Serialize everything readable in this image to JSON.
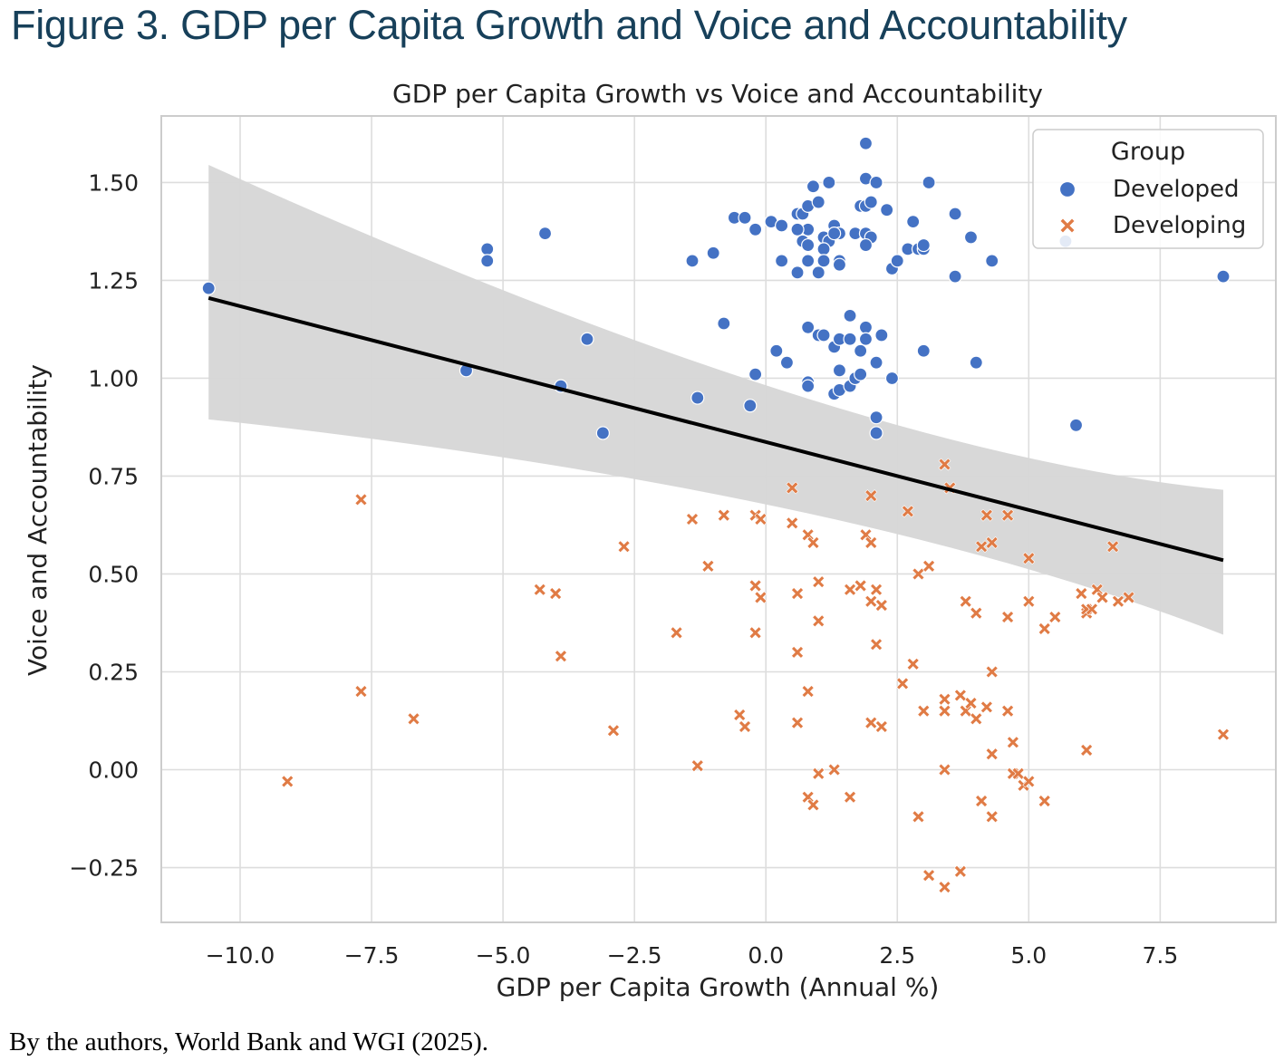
{
  "figure_title": "Figure 3. GDP per Capita Growth and Voice and Accountability",
  "caption": "By the authors, World Bank and WGI (2025).",
  "colors": {
    "developed": "#4472c4",
    "developing": "#e07b45",
    "regression_line": "#000000",
    "confidence_band": "#d6d6d6",
    "grid": "#dddddd",
    "title": "#17405a"
  },
  "chart_data": {
    "type": "scatter",
    "title": "GDP per Capita Growth vs Voice and Accountability",
    "xlabel": "GDP per Capita Growth (Annual %)",
    "ylabel": "Voice and Accountability",
    "xlim": [
      -11.5,
      9.7
    ],
    "ylim": [
      -0.39,
      1.67
    ],
    "xticks": [
      -10.0,
      -7.5,
      -5.0,
      -2.5,
      0.0,
      2.5,
      5.0,
      7.5
    ],
    "xtick_labels": [
      "−10.0",
      "−7.5",
      "−5.0",
      "−2.5",
      "0.0",
      "2.5",
      "5.0",
      "7.5"
    ],
    "yticks": [
      -0.25,
      0.0,
      0.25,
      0.5,
      0.75,
      1.0,
      1.25,
      1.5
    ],
    "ytick_labels": [
      "−0.25",
      "0.00",
      "0.25",
      "0.50",
      "0.75",
      "1.00",
      "1.25",
      "1.50"
    ],
    "grid": true,
    "legend": {
      "title": "Group",
      "placement": "top-right"
    },
    "series": [
      {
        "name": "Developed",
        "marker": "circle",
        "points": [
          [
            -10.6,
            1.23
          ],
          [
            -5.3,
            1.33
          ],
          [
            -5.3,
            1.3
          ],
          [
            -4.2,
            1.37
          ],
          [
            -5.7,
            1.02
          ],
          [
            -3.9,
            0.98
          ],
          [
            -3.4,
            1.1
          ],
          [
            -3.1,
            0.86
          ],
          [
            -1.4,
            1.3
          ],
          [
            -1.3,
            0.95
          ],
          [
            -1.0,
            1.32
          ],
          [
            -0.8,
            1.14
          ],
          [
            -0.6,
            1.41
          ],
          [
            -0.4,
            1.41
          ],
          [
            -0.2,
            1.38
          ],
          [
            -0.2,
            1.01
          ],
          [
            -0.3,
            0.93
          ],
          [
            0.1,
            1.4
          ],
          [
            0.3,
            1.39
          ],
          [
            0.3,
            1.3
          ],
          [
            0.2,
            1.07
          ],
          [
            0.4,
            1.04
          ],
          [
            0.6,
            1.42
          ],
          [
            0.7,
            1.42
          ],
          [
            0.8,
            1.44
          ],
          [
            0.8,
            1.38
          ],
          [
            0.6,
            1.38
          ],
          [
            0.7,
            1.35
          ],
          [
            0.8,
            1.34
          ],
          [
            0.6,
            1.27
          ],
          [
            0.8,
            1.3
          ],
          [
            0.9,
            1.49
          ],
          [
            1.0,
            1.45
          ],
          [
            1.2,
            1.5
          ],
          [
            1.1,
            1.36
          ],
          [
            1.2,
            1.35
          ],
          [
            1.1,
            1.33
          ],
          [
            1.1,
            1.3
          ],
          [
            1.0,
            1.27
          ],
          [
            0.8,
            1.13
          ],
          [
            1.0,
            1.11
          ],
          [
            1.1,
            1.11
          ],
          [
            0.8,
            0.99
          ],
          [
            0.8,
            0.98
          ],
          [
            1.3,
            1.39
          ],
          [
            1.4,
            1.37
          ],
          [
            1.3,
            1.37
          ],
          [
            1.4,
            1.3
          ],
          [
            1.4,
            1.29
          ],
          [
            1.3,
            1.08
          ],
          [
            1.4,
            1.1
          ],
          [
            1.4,
            1.02
          ],
          [
            1.3,
            0.96
          ],
          [
            1.4,
            0.97
          ],
          [
            1.6,
            1.16
          ],
          [
            1.6,
            1.1
          ],
          [
            1.7,
            1.37
          ],
          [
            1.6,
            0.98
          ],
          [
            1.7,
            1.0
          ],
          [
            1.8,
            1.44
          ],
          [
            1.9,
            1.6
          ],
          [
            1.9,
            1.51
          ],
          [
            1.9,
            1.44
          ],
          [
            2.0,
            1.45
          ],
          [
            2.1,
            1.5
          ],
          [
            1.9,
            1.37
          ],
          [
            2.0,
            1.36
          ],
          [
            1.9,
            1.34
          ],
          [
            1.9,
            1.13
          ],
          [
            1.9,
            1.1
          ],
          [
            1.8,
            1.07
          ],
          [
            1.8,
            1.01
          ],
          [
            2.2,
            1.11
          ],
          [
            2.1,
            1.04
          ],
          [
            2.1,
            0.9
          ],
          [
            2.1,
            0.86
          ],
          [
            2.3,
            1.43
          ],
          [
            2.4,
            1.28
          ],
          [
            2.5,
            1.3
          ],
          [
            2.4,
            1.0
          ],
          [
            2.7,
            1.33
          ],
          [
            2.8,
            1.4
          ],
          [
            2.9,
            1.33
          ],
          [
            3.0,
            1.33
          ],
          [
            3.0,
            1.34
          ],
          [
            3.1,
            1.5
          ],
          [
            3.0,
            1.07
          ],
          [
            3.6,
            1.42
          ],
          [
            3.6,
            1.26
          ],
          [
            3.9,
            1.36
          ],
          [
            4.0,
            1.04
          ],
          [
            4.3,
            1.3
          ],
          [
            5.7,
            1.35
          ],
          [
            5.9,
            0.88
          ],
          [
            8.7,
            1.26
          ]
        ]
      },
      {
        "name": "Developing",
        "marker": "x",
        "points": [
          [
            -9.1,
            -0.03
          ],
          [
            -7.7,
            0.69
          ],
          [
            -7.7,
            0.2
          ],
          [
            -6.7,
            0.13
          ],
          [
            -4.3,
            0.46
          ],
          [
            -4.0,
            0.45
          ],
          [
            -3.9,
            0.29
          ],
          [
            -2.9,
            0.1
          ],
          [
            -2.7,
            0.57
          ],
          [
            -1.7,
            0.35
          ],
          [
            -1.4,
            0.64
          ],
          [
            -1.3,
            0.01
          ],
          [
            -1.1,
            0.52
          ],
          [
            -0.8,
            0.65
          ],
          [
            -0.5,
            0.14
          ],
          [
            -0.4,
            0.11
          ],
          [
            -0.2,
            0.65
          ],
          [
            -0.1,
            0.64
          ],
          [
            -0.2,
            0.47
          ],
          [
            -0.1,
            0.44
          ],
          [
            -0.2,
            0.35
          ],
          [
            0.5,
            0.72
          ],
          [
            0.5,
            0.63
          ],
          [
            0.6,
            0.45
          ],
          [
            0.6,
            0.3
          ],
          [
            0.6,
            0.12
          ],
          [
            0.8,
            0.2
          ],
          [
            0.8,
            0.6
          ],
          [
            0.9,
            0.58
          ],
          [
            1.0,
            0.48
          ],
          [
            1.0,
            0.38
          ],
          [
            0.8,
            -0.07
          ],
          [
            0.9,
            -0.09
          ],
          [
            1.0,
            -0.01
          ],
          [
            1.3,
            0.0
          ],
          [
            1.6,
            -0.07
          ],
          [
            1.6,
            0.46
          ],
          [
            1.8,
            0.47
          ],
          [
            1.9,
            0.6
          ],
          [
            2.0,
            0.58
          ],
          [
            2.0,
            0.7
          ],
          [
            2.0,
            0.43
          ],
          [
            2.1,
            0.46
          ],
          [
            2.2,
            0.42
          ],
          [
            2.1,
            0.32
          ],
          [
            2.0,
            0.12
          ],
          [
            2.2,
            0.11
          ],
          [
            2.7,
            0.66
          ],
          [
            2.6,
            0.22
          ],
          [
            2.8,
            0.27
          ],
          [
            2.9,
            0.5
          ],
          [
            3.1,
            0.52
          ],
          [
            3.0,
            0.15
          ],
          [
            2.9,
            -0.12
          ],
          [
            3.1,
            -0.27
          ],
          [
            3.4,
            0.78
          ],
          [
            3.5,
            0.72
          ],
          [
            3.4,
            0.15
          ],
          [
            3.4,
            0.18
          ],
          [
            3.4,
            0.0
          ],
          [
            3.4,
            -0.3
          ],
          [
            3.7,
            0.19
          ],
          [
            3.8,
            0.43
          ],
          [
            3.8,
            0.15
          ],
          [
            3.9,
            0.17
          ],
          [
            4.0,
            0.4
          ],
          [
            4.0,
            0.13
          ],
          [
            4.1,
            0.57
          ],
          [
            4.2,
            0.16
          ],
          [
            4.2,
            0.65
          ],
          [
            4.3,
            0.58
          ],
          [
            4.3,
            0.25
          ],
          [
            4.3,
            0.04
          ],
          [
            4.1,
            -0.08
          ],
          [
            4.3,
            -0.12
          ],
          [
            3.7,
            -0.26
          ],
          [
            4.6,
            0.65
          ],
          [
            4.6,
            0.39
          ],
          [
            4.6,
            0.15
          ],
          [
            4.7,
            0.07
          ],
          [
            4.7,
            -0.01
          ],
          [
            4.8,
            -0.01
          ],
          [
            4.9,
            -0.04
          ],
          [
            5.0,
            -0.03
          ],
          [
            5.0,
            0.43
          ],
          [
            5.0,
            0.54
          ],
          [
            5.3,
            0.36
          ],
          [
            5.3,
            -0.08
          ],
          [
            5.5,
            0.39
          ],
          [
            6.0,
            0.45
          ],
          [
            6.1,
            0.4
          ],
          [
            6.1,
            0.41
          ],
          [
            6.2,
            0.41
          ],
          [
            6.1,
            0.05
          ],
          [
            6.3,
            0.46
          ],
          [
            6.4,
            0.44
          ],
          [
            6.6,
            0.57
          ],
          [
            6.7,
            0.43
          ],
          [
            6.9,
            0.44
          ],
          [
            8.7,
            0.09
          ]
        ]
      }
    ],
    "regression": {
      "x_range": [
        -10.6,
        8.7
      ],
      "line": [
        1.205,
        0.535
      ],
      "ci_lower": [
        0.895,
        0.345
      ],
      "ci_upper": [
        1.545,
        0.715
      ]
    }
  }
}
